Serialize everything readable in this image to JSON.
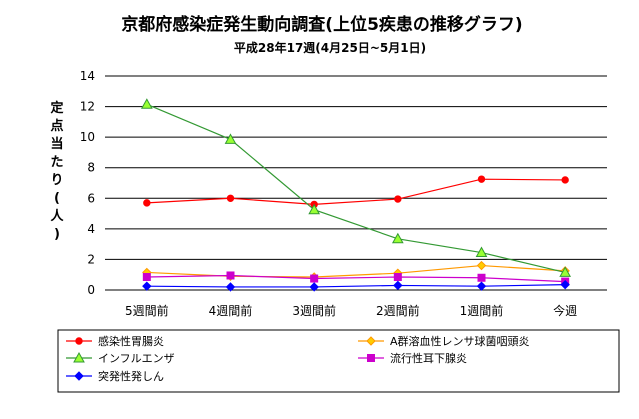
{
  "chart_data": {
    "type": "line",
    "title": "京都府感染症発生動向調査(上位5疾患の推移グラフ)",
    "subtitle": "平成28年17週(4月25日~5月1日)",
    "ylabel": "定点当たり(人)",
    "xlabel": "",
    "categories": [
      "5週間前",
      "4週間前",
      "3週間前",
      "2週間前",
      "1週間前",
      "今週"
    ],
    "ylim": [
      0,
      14
    ],
    "yticks": [
      0,
      2,
      4,
      6,
      8,
      10,
      12,
      14
    ],
    "grid": "horizontal",
    "legend_position": "bottom",
    "series": [
      {
        "name": "感染性胃腸炎",
        "color": "#ff0000",
        "marker": "circle",
        "values": [
          5.7,
          6.0,
          5.6,
          5.95,
          7.25,
          7.2
        ]
      },
      {
        "name": "A群溶血性レンサ球菌咽頭炎",
        "color": "#ff9900",
        "marker": "diamond",
        "values": [
          1.15,
          0.9,
          0.85,
          1.1,
          1.6,
          1.25
        ]
      },
      {
        "name": "インフルエンザ",
        "color": "#339933",
        "marker": "triangle",
        "values": [
          12.15,
          9.85,
          5.25,
          3.35,
          2.45,
          1.15
        ]
      },
      {
        "name": "流行性耳下腺炎",
        "color": "#cc00cc",
        "marker": "square",
        "values": [
          0.85,
          0.95,
          0.75,
          0.85,
          0.8,
          0.55
        ]
      },
      {
        "name": "突発性発しん",
        "color": "#0000ff",
        "marker": "diamond",
        "values": [
          0.25,
          0.2,
          0.2,
          0.3,
          0.25,
          0.35
        ]
      }
    ]
  }
}
